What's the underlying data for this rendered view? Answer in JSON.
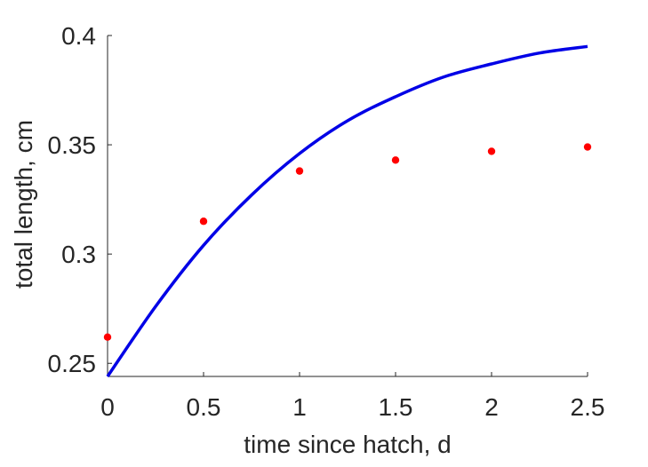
{
  "chart_data": {
    "type": "line",
    "title": "",
    "xlabel": "time since hatch, d",
    "ylabel": "total length, cm",
    "xlim": [
      0,
      2.5
    ],
    "ylim": [
      0.244,
      0.4
    ],
    "x_ticks": [
      0,
      0.5,
      1,
      1.5,
      2,
      2.5
    ],
    "x_tick_labels": [
      "0",
      "0.5",
      "1",
      "1.5",
      "2",
      "2.5"
    ],
    "y_ticks": [
      0.25,
      0.3,
      0.35,
      0.4
    ],
    "y_tick_labels": [
      "0.25",
      "0.3",
      "0.35",
      "0.4"
    ],
    "grid": false,
    "legend": "none",
    "series": [
      {
        "kind": "line",
        "color": "#0000e6",
        "x": [
          0,
          0.25,
          0.5,
          0.75,
          1,
          1.25,
          1.5,
          1.75,
          2,
          2.25,
          2.5
        ],
        "y": [
          0.244,
          0.276,
          0.304,
          0.327,
          0.346,
          0.361,
          0.372,
          0.381,
          0.387,
          0.392,
          0.395
        ]
      },
      {
        "kind": "scatter",
        "color": "#ff0000",
        "x": [
          0,
          0.5,
          1,
          1.5,
          2,
          2.5
        ],
        "y": [
          0.262,
          0.315,
          0.338,
          0.343,
          0.347,
          0.349
        ]
      }
    ]
  }
}
